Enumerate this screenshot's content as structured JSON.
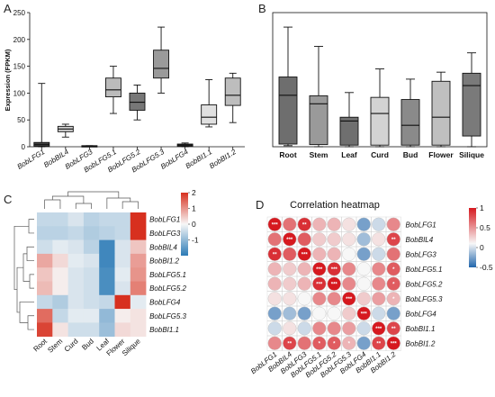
{
  "panels": {
    "a": "A",
    "b": "B",
    "c": "C",
    "d": "D"
  },
  "colors": {
    "box_fill_a": [
      "#444444",
      "#cfcfcf",
      "#f2f2f2",
      "#bbbbbb",
      "#777777",
      "#9a9a9a",
      "#444444",
      "#e0e0e0",
      "#bdbdbd"
    ],
    "box_fill_b": [
      "#6e6e6e",
      "#9a9a9a",
      "#6f6f6f",
      "#d3d3d3",
      "#8a8a8a",
      "#bfbfbf",
      "#7a7a7a"
    ]
  },
  "chart_data": [
    {
      "panel": "A",
      "type": "boxplot",
      "ylabel": "Expression (FPKM)",
      "ylim": [
        0,
        250
      ],
      "yticks": [
        "0",
        "50",
        "100",
        "150",
        "200",
        "250"
      ],
      "categories": [
        "BobLFG1",
        "BobBIL4",
        "BobLFG3",
        "BobLFG5.1",
        "BobLFG5.2",
        "BobLFG5.3",
        "BobLFG4",
        "BobBI1.1",
        "BobBI1.2"
      ],
      "boxes": [
        {
          "min": 0,
          "q1": 1,
          "median": 4,
          "q3": 8,
          "max": 118
        },
        {
          "min": 18,
          "q1": 28,
          "median": 33,
          "q3": 38,
          "max": 42
        },
        {
          "min": 0,
          "q1": 0,
          "median": 1,
          "q3": 2,
          "max": 2
        },
        {
          "min": 62,
          "q1": 93,
          "median": 106,
          "q3": 128,
          "max": 150
        },
        {
          "min": 50,
          "q1": 68,
          "median": 83,
          "q3": 100,
          "max": 115
        },
        {
          "min": 100,
          "q1": 128,
          "median": 146,
          "q3": 180,
          "max": 223
        },
        {
          "min": 0,
          "q1": 1,
          "median": 3,
          "q3": 5,
          "max": 7
        },
        {
          "min": 37,
          "q1": 42,
          "median": 55,
          "q3": 78,
          "max": 125
        },
        {
          "min": 45,
          "q1": 77,
          "median": 96,
          "q3": 128,
          "max": 137
        }
      ]
    },
    {
      "panel": "B",
      "type": "boxplot",
      "ylim": [
        0,
        250
      ],
      "categories": [
        "Root",
        "Stem",
        "Leaf",
        "Curd",
        "Bud",
        "Flower",
        "Silique"
      ],
      "boxes": [
        {
          "min": 2,
          "q1": 5,
          "median": 96,
          "q3": 130,
          "max": 223
        },
        {
          "min": 0,
          "q1": 4,
          "median": 80,
          "q3": 95,
          "max": 187
        },
        {
          "min": 0,
          "q1": 3,
          "median": 48,
          "q3": 55,
          "max": 101
        },
        {
          "min": 0,
          "q1": 3,
          "median": 62,
          "q3": 92,
          "max": 145
        },
        {
          "min": 0,
          "q1": 3,
          "median": 40,
          "q3": 88,
          "max": 126
        },
        {
          "min": 0,
          "q1": 3,
          "median": 55,
          "q3": 122,
          "max": 139
        },
        {
          "min": 0,
          "q1": 20,
          "median": 114,
          "q3": 137,
          "max": 175
        }
      ]
    },
    {
      "panel": "C",
      "type": "heatmap",
      "rows": [
        "BobLFG1",
        "BobLFG3",
        "BobBIL4",
        "BobBI1.2",
        "BobLFG5.1",
        "BobLFG5.2",
        "BobLFG4",
        "BobLFG5.3",
        "BobBI1.1"
      ],
      "columns": [
        "Root",
        "Stem",
        "Curd",
        "Bud",
        "Leaf",
        "Flower",
        "Silique"
      ],
      "scale": {
        "min": -2,
        "max": 2,
        "ticks": [
          "2",
          "1",
          "0",
          "-1"
        ]
      },
      "values": [
        [
          -0.5,
          -0.5,
          -0.3,
          -0.6,
          -0.5,
          -0.5,
          2.0
        ],
        [
          -0.6,
          -0.6,
          -0.5,
          -0.7,
          -0.6,
          -0.5,
          2.0
        ],
        [
          -0.4,
          -0.2,
          -0.3,
          -0.6,
          -1.8,
          -0.3,
          0.5
        ],
        [
          0.8,
          0.3,
          -0.2,
          -0.3,
          -1.8,
          -0.3,
          0.9
        ],
        [
          0.5,
          0.1,
          -0.3,
          -0.4,
          -1.7,
          -0.2,
          1.0
        ],
        [
          0.6,
          0.1,
          -0.3,
          -0.4,
          -1.7,
          -0.3,
          1.2
        ],
        [
          -0.5,
          -0.7,
          -0.3,
          -0.4,
          -0.5,
          2.0,
          -0.2
        ],
        [
          1.4,
          -0.5,
          -0.2,
          -0.2,
          -1.0,
          0.1,
          0.2
        ],
        [
          1.8,
          0.2,
          -0.4,
          -0.4,
          -0.9,
          0.3,
          0.2
        ]
      ]
    },
    {
      "panel": "D",
      "type": "heatmap",
      "title": "Correlation heatmap",
      "rows": [
        "BobLFG1",
        "BobBIL4",
        "BobLFG3",
        "BobLFG5.1",
        "BobLFG5.2",
        "BobLFG5.3",
        "BobLFG4",
        "BobBI1.1",
        "BobBI1.2"
      ],
      "columns": [
        "BobLFG1",
        "BobBIL4",
        "BobLFG3",
        "BobLFG5.1",
        "BobLFG5.2",
        "BobLFG5.3",
        "BobLFG4",
        "BobBI1.1",
        "BobBI1.2"
      ],
      "scale": {
        "min": -0.5,
        "max": 1,
        "ticks": [
          "1",
          "0.5",
          "0",
          "-0.5"
        ]
      },
      "values": [
        [
          1,
          0.6,
          0.9,
          0.3,
          0.3,
          0.1,
          -0.3,
          -0.1,
          0.5
        ],
        [
          0.6,
          1,
          0.7,
          0.2,
          0.2,
          0.1,
          -0.2,
          0.1,
          0.8
        ],
        [
          0.9,
          0.7,
          1,
          0.3,
          0.3,
          0.0,
          -0.3,
          -0.1,
          0.6
        ],
        [
          0.3,
          0.2,
          0.3,
          1,
          0.9,
          0.5,
          0.0,
          0.5,
          0.7
        ],
        [
          0.3,
          0.2,
          0.3,
          0.9,
          1,
          0.5,
          0.0,
          0.5,
          0.7
        ],
        [
          0.1,
          0.1,
          0.0,
          0.5,
          0.5,
          1,
          0.2,
          0.4,
          0.3
        ],
        [
          -0.3,
          -0.2,
          -0.3,
          0.0,
          0.0,
          0.2,
          1,
          -0.1,
          -0.3
        ],
        [
          -0.1,
          0.1,
          -0.1,
          0.5,
          0.5,
          0.4,
          -0.1,
          1,
          0.8
        ],
        [
          0.5,
          0.8,
          0.6,
          0.7,
          0.7,
          0.3,
          -0.3,
          0.8,
          1
        ]
      ],
      "stars": [
        [
          "***",
          "",
          "**",
          "",
          "",
          "",
          "",
          "",
          ""
        ],
        [
          "",
          "***",
          "",
          "",
          "",
          "",
          "",
          "",
          "**"
        ],
        [
          "**",
          "",
          "***",
          "",
          "",
          "",
          "",
          "",
          ""
        ],
        [
          "",
          "",
          "",
          "***",
          "***",
          "",
          "",
          "",
          "*"
        ],
        [
          "",
          "",
          "",
          "***",
          "***",
          "",
          "",
          "",
          "*"
        ],
        [
          "",
          "",
          "",
          "",
          "",
          "***",
          "",
          "",
          "*"
        ],
        [
          "",
          "",
          "",
          "",
          "",
          "",
          "***",
          "",
          ""
        ],
        [
          "",
          "",
          "",
          "",
          "",
          "",
          "",
          "***",
          "**"
        ],
        [
          "",
          "**",
          "",
          "*",
          "*",
          "*",
          "",
          "**",
          "***"
        ]
      ]
    }
  ]
}
